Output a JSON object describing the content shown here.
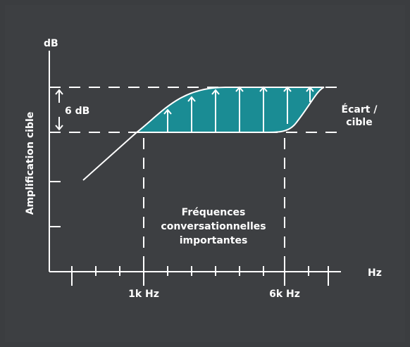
{
  "diagram": {
    "y_axis_unit": "dB",
    "y_axis_title": "Amplification cible",
    "x_axis_unit": "Hz",
    "gap_label": "6 dB",
    "deviation_label_line1": "Écart /",
    "deviation_label_line2": "cible",
    "freq_1k_label": "1k Hz",
    "freq_6k_label": "6k Hz",
    "region_label_line1": "Fréquences",
    "region_label_line2": "conversationnelles",
    "region_label_line3": "importantes"
  },
  "colors": {
    "background": "#3d3f42",
    "line": "#ffffff",
    "fill": "#1a8c94"
  }
}
